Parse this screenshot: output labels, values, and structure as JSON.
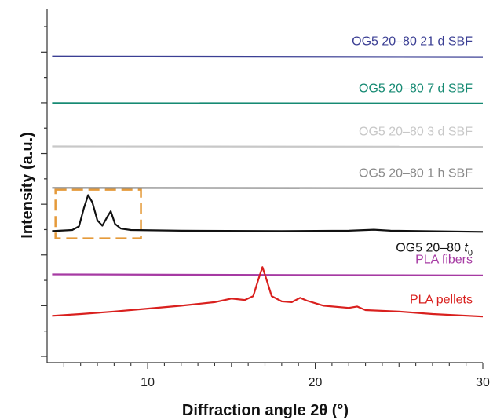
{
  "chart_data": {
    "type": "line",
    "xlabel": "Diffraction angle 2θ (°)",
    "ylabel": "Intensity (a.u.)",
    "xlim": [
      4,
      30
    ],
    "x_ticks": [
      10,
      20,
      30
    ],
    "y_ticks_unlabeled": 14,
    "grid": false,
    "series": [
      {
        "name": "OG5 20–80 21 d SBF",
        "color": "#3b3f94",
        "baseline": 9.5,
        "points": [
          [
            4.3,
            9.5
          ],
          [
            30,
            9.48
          ]
        ]
      },
      {
        "name": "OG5 20–80 7 d SBF",
        "color": "#168a73",
        "baseline": 8.2,
        "points": [
          [
            4.3,
            8.2
          ],
          [
            30,
            8.19
          ]
        ]
      },
      {
        "name": "OG5 20–80 3 d SBF",
        "color": "#c8c8c8",
        "baseline": 7.0,
        "points": [
          [
            4.3,
            7.0
          ],
          [
            30,
            6.99
          ]
        ]
      },
      {
        "name": "OG5 20–80 1 h SBF",
        "color": "#8a8a8a",
        "baseline": 5.85,
        "points": [
          [
            4.3,
            5.85
          ],
          [
            30,
            5.84
          ]
        ]
      },
      {
        "name": "OG5 20–80 t0",
        "label_main": "OG5 20–80 ",
        "label_italic": "t",
        "label_sub": "0",
        "color": "#111111",
        "baseline": 4.65,
        "points": [
          [
            4.3,
            4.65
          ],
          [
            5.5,
            4.68
          ],
          [
            5.9,
            4.78
          ],
          [
            6.2,
            5.3
          ],
          [
            6.45,
            5.65
          ],
          [
            6.7,
            5.45
          ],
          [
            7.0,
            4.95
          ],
          [
            7.3,
            4.8
          ],
          [
            7.6,
            5.05
          ],
          [
            7.8,
            5.2
          ],
          [
            8.05,
            4.85
          ],
          [
            8.4,
            4.72
          ],
          [
            9.0,
            4.68
          ],
          [
            12,
            4.66
          ],
          [
            18,
            4.65
          ],
          [
            22,
            4.66
          ],
          [
            23.5,
            4.69
          ],
          [
            24.5,
            4.66
          ],
          [
            30,
            4.63
          ]
        ]
      },
      {
        "name": "PLA fibers",
        "color": "#a63aa3",
        "baseline": 3.45,
        "points": [
          [
            4.3,
            3.45
          ],
          [
            30,
            3.42
          ]
        ]
      },
      {
        "name": "PLA pellets",
        "color": "#d9201e",
        "baseline": 2.3,
        "points": [
          [
            4.3,
            2.3
          ],
          [
            6,
            2.35
          ],
          [
            8,
            2.42
          ],
          [
            10,
            2.5
          ],
          [
            12,
            2.58
          ],
          [
            14,
            2.68
          ],
          [
            15,
            2.78
          ],
          [
            15.8,
            2.74
          ],
          [
            16.3,
            2.85
          ],
          [
            16.6,
            3.3
          ],
          [
            16.85,
            3.65
          ],
          [
            17.1,
            3.3
          ],
          [
            17.4,
            2.85
          ],
          [
            18,
            2.7
          ],
          [
            18.6,
            2.68
          ],
          [
            19.1,
            2.8
          ],
          [
            19.5,
            2.72
          ],
          [
            20.5,
            2.58
          ],
          [
            22,
            2.52
          ],
          [
            22.5,
            2.56
          ],
          [
            23,
            2.46
          ],
          [
            25,
            2.42
          ],
          [
            27,
            2.35
          ],
          [
            30,
            2.28
          ]
        ]
      }
    ],
    "annotation": {
      "type": "dashed-box",
      "color": "#e59a3a",
      "x_range": [
        4.5,
        9.6
      ],
      "y_range": [
        4.45,
        5.8
      ]
    }
  }
}
